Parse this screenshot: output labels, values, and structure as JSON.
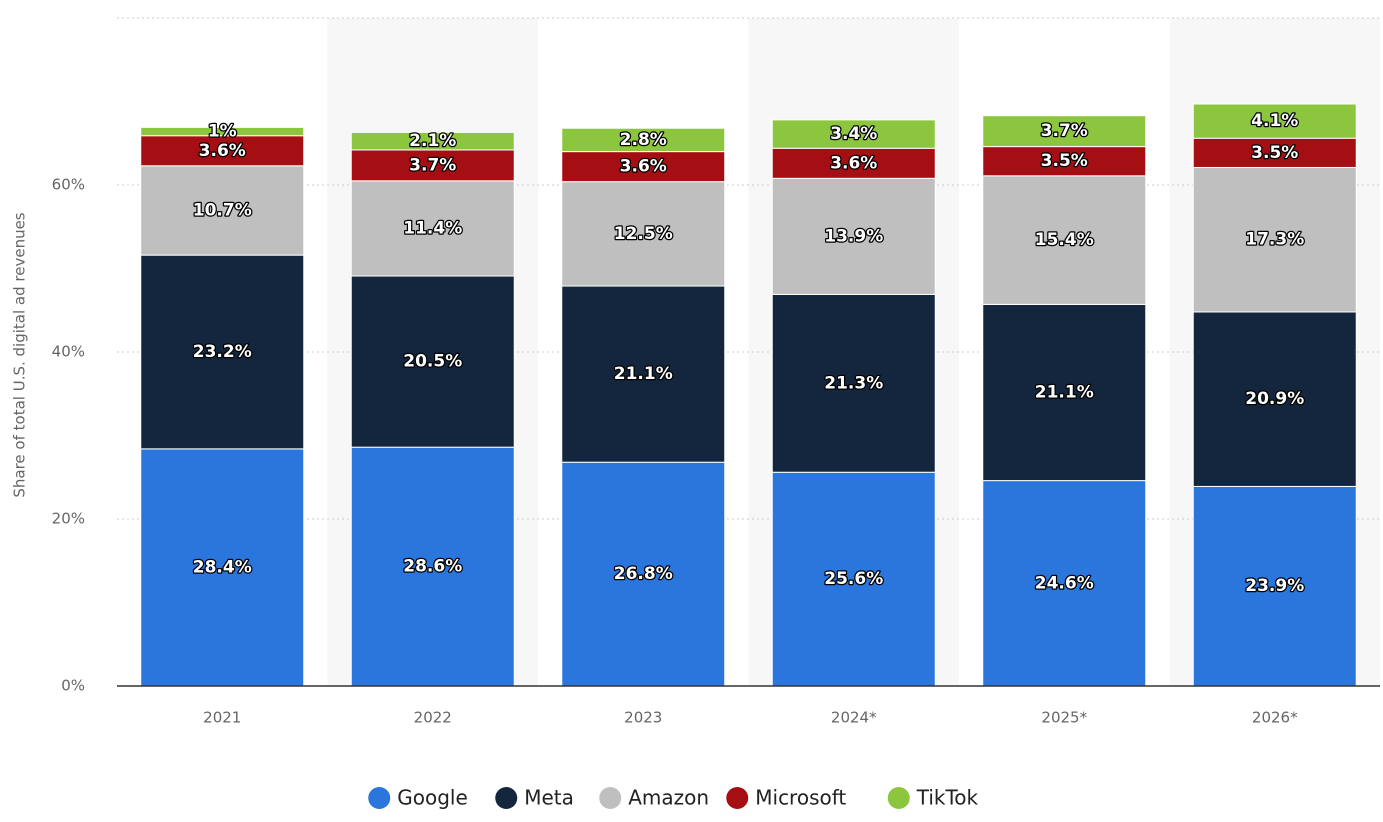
{
  "chart_data": {
    "type": "stacked-bar",
    "y_label": "Share of total U.S. digital ad revenues",
    "categories": [
      "2021",
      "2022",
      "2023",
      "2024*",
      "2025*",
      "2026*"
    ],
    "series": [
      {
        "name": "Google",
        "color": "#2a76dd",
        "values": [
          28.4,
          28.6,
          26.8,
          25.6,
          24.6,
          23.9
        ],
        "value_labels": [
          "28.4%",
          "28.6%",
          "26.8%",
          "25.6%",
          "24.6%",
          "23.9%"
        ]
      },
      {
        "name": "Meta",
        "color": "#14263d",
        "values": [
          23.2,
          20.5,
          21.1,
          21.3,
          21.1,
          20.9
        ],
        "value_labels": [
          "23.2%",
          "20.5%",
          "21.1%",
          "21.3%",
          "21.1%",
          "20.9%"
        ]
      },
      {
        "name": "Amazon",
        "color": "#bfbfbf",
        "values": [
          10.7,
          11.4,
          12.5,
          13.9,
          15.4,
          17.3
        ],
        "value_labels": [
          "10.7%",
          "11.4%",
          "12.5%",
          "13.9%",
          "15.4%",
          "17.3%"
        ]
      },
      {
        "name": "Microsoft",
        "color": "#a50f14",
        "values": [
          3.6,
          3.7,
          3.6,
          3.6,
          3.5,
          3.5
        ],
        "value_labels": [
          "3.6%",
          "3.7%",
          "3.6%",
          "3.6%",
          "3.5%",
          "3.5%"
        ]
      },
      {
        "name": "TikTok",
        "color": "#8cc63f",
        "values": [
          1,
          2.1,
          2.8,
          3.4,
          3.7,
          4.1
        ],
        "value_labels": [
          "1%",
          "2.1%",
          "2.8%",
          "3.4%",
          "3.7%",
          "4.1%"
        ]
      }
    ],
    "ylim": [
      0,
      80
    ],
    "yticks": [
      {
        "value": 0,
        "label": "0%"
      },
      {
        "value": 20,
        "label": "20%"
      },
      {
        "value": 40,
        "label": "40%"
      },
      {
        "value": 60,
        "label": "60%"
      }
    ],
    "grid": true,
    "legend": "bottom"
  }
}
